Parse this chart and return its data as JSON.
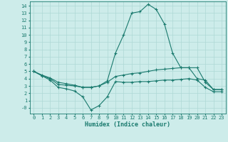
{
  "xlabel": "Humidex (Indice chaleur)",
  "x": [
    0,
    1,
    2,
    3,
    4,
    5,
    6,
    7,
    8,
    9,
    10,
    11,
    12,
    13,
    14,
    15,
    16,
    17,
    18,
    19,
    20,
    21,
    22,
    23
  ],
  "line_top": [
    5.0,
    4.5,
    4.1,
    3.5,
    3.3,
    3.1,
    2.8,
    2.8,
    3.0,
    3.7,
    7.5,
    10.0,
    13.0,
    13.2,
    14.2,
    13.5,
    11.5,
    7.5,
    5.5,
    5.5,
    5.5,
    3.5,
    2.5,
    2.5
  ],
  "line_mid": [
    5.0,
    4.4,
    4.0,
    3.2,
    3.1,
    3.0,
    2.8,
    2.8,
    3.0,
    3.5,
    4.3,
    4.5,
    4.7,
    4.8,
    5.0,
    5.2,
    5.3,
    5.4,
    5.5,
    5.5,
    4.0,
    3.8,
    2.5,
    2.5
  ],
  "line_bot": [
    5.0,
    4.4,
    3.8,
    2.8,
    2.6,
    2.3,
    1.5,
    -0.3,
    0.3,
    1.5,
    3.6,
    3.5,
    3.5,
    3.6,
    3.6,
    3.7,
    3.8,
    3.8,
    3.9,
    4.0,
    3.8,
    2.8,
    2.2,
    2.2
  ],
  "line_color": "#1a7a6e",
  "bg_color": "#cdecea",
  "grid_color": "#aed8d5",
  "xlim": [
    -0.5,
    23.5
  ],
  "ylim": [
    -0.8,
    14.6
  ],
  "ytick_vals": [
    14,
    13,
    12,
    11,
    10,
    9,
    8,
    7,
    6,
    5,
    4,
    3,
    2,
    1,
    0
  ],
  "ytick_labels": [
    "14",
    "13",
    "12",
    "11",
    "10",
    "9",
    "8",
    "7",
    "6",
    "5",
    "4",
    "3",
    "2",
    "1",
    "-0"
  ],
  "xticks": [
    0,
    1,
    2,
    3,
    4,
    5,
    6,
    7,
    8,
    9,
    10,
    11,
    12,
    13,
    14,
    15,
    16,
    17,
    18,
    19,
    20,
    21,
    22,
    23
  ]
}
